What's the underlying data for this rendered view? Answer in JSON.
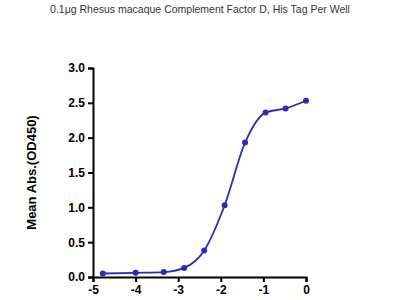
{
  "chart_data": {
    "type": "scatter",
    "title": "0.1μg Rhesus macaque Complement Factor D, His Tag Per Well",
    "ylabel": "Mean Abs.(OD450)",
    "x": [
      -4.77,
      -4.0,
      -3.34,
      -2.86,
      -2.39,
      -1.91,
      -1.43,
      -0.95,
      -0.48,
      0.0
    ],
    "values": [
      0.05,
      0.06,
      0.07,
      0.13,
      0.38,
      1.03,
      1.93,
      2.36,
      2.42,
      2.53
    ],
    "color": "#2c2cb4",
    "marker": "circle",
    "line_style": "solid",
    "xlim": [
      -5,
      0
    ],
    "ylim": [
      0,
      3
    ],
    "xticks": [
      -5,
      -4,
      -3,
      -2,
      -1,
      0
    ],
    "yticks": [
      {
        "value": 0,
        "label": "0.0"
      },
      {
        "value": 0.5,
        "label": "0.5"
      },
      {
        "value": 1,
        "label": "1.0"
      },
      {
        "value": 1.5,
        "label": "1.5"
      },
      {
        "value": 2,
        "label": "2.0"
      },
      {
        "value": 2.5,
        "label": "2.5"
      },
      {
        "value": 3,
        "label": "3.0"
      }
    ]
  }
}
